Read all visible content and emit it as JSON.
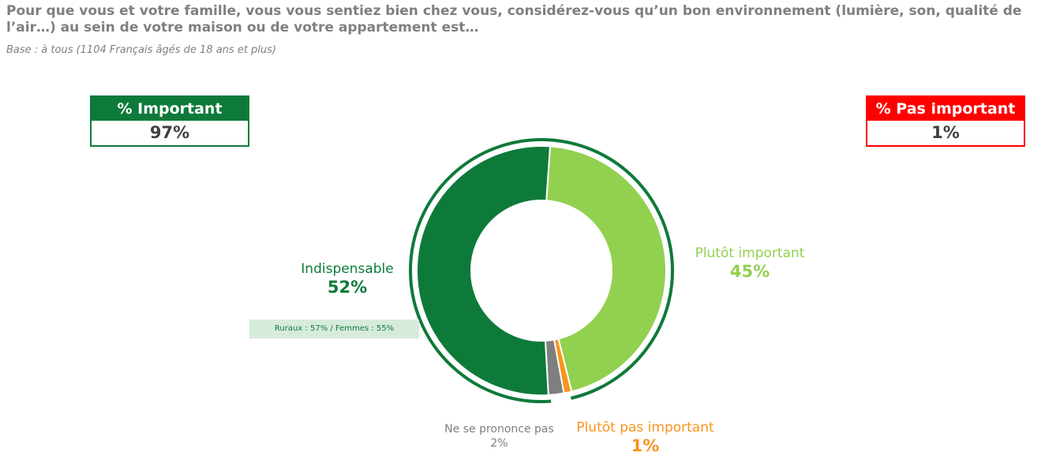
{
  "title": "Pour que vous et votre famille, vous vous sentiez bien chez vous, considérez-vous qu’un bon environnement (lumière, son, qualité de l’air…)  au sein de votre maison ou de votre appartement est…",
  "base": "Base : à tous (1104 Français âgés de 18 ans et plus)",
  "kpi_important": {
    "label": "% Important",
    "value": "97%",
    "color": "#0e7a3a"
  },
  "kpi_pas_important": {
    "label": "% Pas important",
    "value": "1%",
    "color": "#ff0000"
  },
  "note": "Ruraux : 57% / Femmes : 55%",
  "chart_data": {
    "type": "pie",
    "variant": "donut",
    "categories": [
      "Plutôt important",
      "Plutôt pas important",
      "Ne se prononce pas",
      "Indispensable"
    ],
    "values": [
      45,
      1,
      2,
      52
    ],
    "labels": [
      "45%",
      "1%",
      "2%",
      "52%"
    ],
    "colors": [
      "#92d050",
      "#f7941d",
      "#7f7f7f",
      "#0e7a3a"
    ],
    "group_arc": {
      "covers": [
        "Plutôt important",
        "Indispensable"
      ],
      "color": "#0e7a3a"
    }
  }
}
